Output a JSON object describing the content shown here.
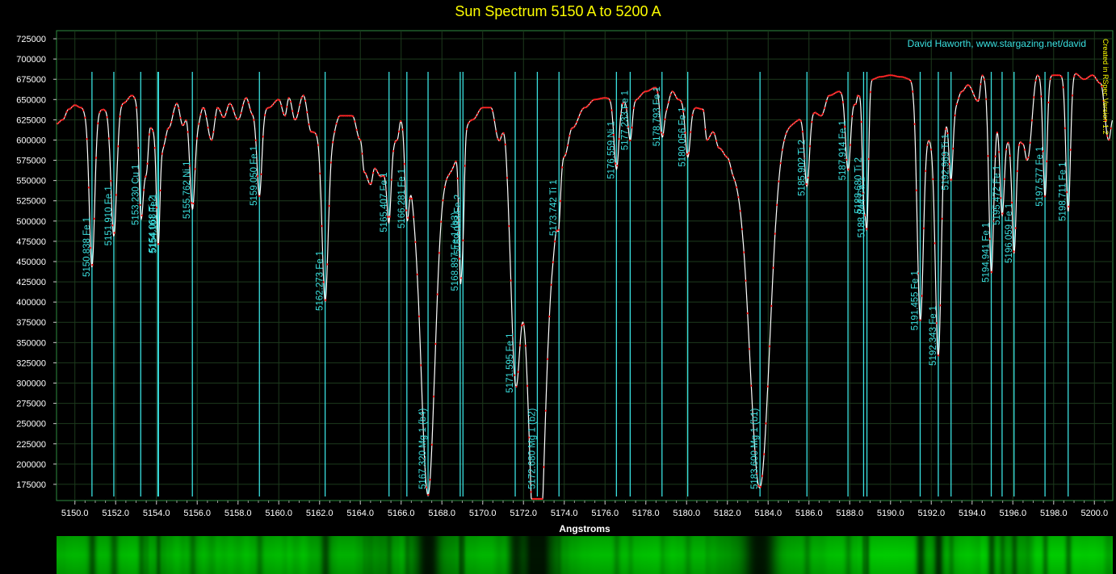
{
  "chart_data": {
    "type": "line",
    "title": "Sun Spectrum 5150 A to 5200 A",
    "xlabel": "Angstroms",
    "ylabel": "",
    "credit": "David Haworth, www.stargazing.net/david",
    "side_note": "Created in RSpec Version 1.2",
    "xlim": [
      5149.1,
      5200.9
    ],
    "ylim": [
      155000,
      735000
    ],
    "grid": true,
    "x_ticks": [
      5150,
      5152,
      5154,
      5156,
      5158,
      5160,
      5162,
      5164,
      5166,
      5168,
      5170,
      5172,
      5174,
      5176,
      5178,
      5180,
      5182,
      5184,
      5186,
      5188,
      5190,
      5192,
      5194,
      5196,
      5198,
      5200
    ],
    "x_tick_labels": [
      "5150.0",
      "5152.0",
      "5154.0",
      "5156.0",
      "5158.0",
      "5160.0",
      "5162.0",
      "5164.0",
      "5166.0",
      "5168.0",
      "5170.0",
      "5172.0",
      "5174.0",
      "5176.0",
      "5178.0",
      "5180.0",
      "5182.0",
      "5184.0",
      "5186.0",
      "5188.0",
      "5190.0",
      "5192.0",
      "5194.0",
      "5196.0",
      "5198.0",
      "5200.0"
    ],
    "y_ticks": [
      175000,
      200000,
      225000,
      250000,
      275000,
      300000,
      325000,
      350000,
      375000,
      400000,
      425000,
      450000,
      475000,
      500000,
      525000,
      550000,
      575000,
      600000,
      625000,
      650000,
      675000,
      700000,
      725000
    ],
    "y_tick_labels": [
      "175000",
      "200000",
      "225000",
      "250000",
      "275000",
      "300000",
      "325000",
      "350000",
      "375000",
      "400000",
      "425000",
      "450000",
      "475000",
      "500000",
      "525000",
      "550000",
      "575000",
      "600000",
      "625000",
      "650000",
      "675000",
      "700000",
      "725000"
    ],
    "continuum": [
      [
        5149.1,
        620000
      ],
      [
        5149.4,
        625000
      ],
      [
        5149.7,
        638000
      ],
      [
        5150.0,
        643000
      ],
      [
        5150.3,
        640000
      ],
      [
        5150.6,
        632000
      ],
      [
        5151.5,
        638000
      ],
      [
        5152.4,
        646000
      ],
      [
        5152.8,
        655000
      ],
      [
        5153.0,
        652000
      ],
      [
        5153.5,
        560000
      ],
      [
        5153.7,
        615000
      ],
      [
        5154.3,
        590000
      ],
      [
        5154.6,
        615000
      ],
      [
        5155.0,
        645000
      ],
      [
        5155.3,
        618000
      ],
      [
        5155.5,
        630000
      ],
      [
        5156.0,
        620000
      ],
      [
        5156.3,
        640000
      ],
      [
        5156.7,
        600000
      ],
      [
        5157.0,
        640000
      ],
      [
        5157.3,
        628000
      ],
      [
        5157.6,
        645000
      ],
      [
        5158.0,
        625000
      ],
      [
        5158.4,
        652000
      ],
      [
        5158.7,
        633000
      ],
      [
        5159.5,
        640000
      ],
      [
        5160.0,
        650000
      ],
      [
        5160.3,
        630000
      ],
      [
        5160.5,
        652000
      ],
      [
        5160.8,
        625000
      ],
      [
        5161.2,
        655000
      ],
      [
        5161.6,
        610000
      ],
      [
        5162.6,
        605000
      ],
      [
        5163.0,
        630000
      ],
      [
        5163.6,
        630000
      ],
      [
        5164.0,
        600000
      ],
      [
        5164.2,
        560000
      ],
      [
        5164.5,
        545000
      ],
      [
        5164.7,
        565000
      ],
      [
        5165.0,
        555000
      ],
      [
        5165.8,
        600000
      ],
      [
        5166.0,
        625000
      ],
      [
        5166.7,
        540000
      ],
      [
        5168.3,
        560000
      ],
      [
        5169.5,
        625000
      ],
      [
        5170.0,
        640000
      ],
      [
        5170.4,
        640000
      ],
      [
        5170.8,
        600000
      ],
      [
        5171.1,
        625000
      ],
      [
        5171.3,
        610000
      ],
      [
        5172.4,
        450000
      ],
      [
        5173.4,
        485000
      ],
      [
        5174.0,
        580000
      ],
      [
        5174.4,
        615000
      ],
      [
        5175.0,
        640000
      ],
      [
        5175.5,
        650000
      ],
      [
        5176.0,
        652000
      ],
      [
        5176.8,
        648000
      ],
      [
        5177.5,
        650000
      ],
      [
        5178.0,
        660000
      ],
      [
        5178.5,
        665000
      ],
      [
        5179.0,
        640000
      ],
      [
        5179.3,
        660000
      ],
      [
        5179.6,
        650000
      ],
      [
        5180.4,
        640000
      ],
      [
        5180.8,
        638000
      ],
      [
        5181.0,
        600000
      ],
      [
        5181.3,
        610000
      ],
      [
        5181.6,
        590000
      ],
      [
        5182.0,
        580000
      ],
      [
        5182.3,
        565000
      ],
      [
        5185.0,
        620000
      ],
      [
        5186.2,
        635000
      ],
      [
        5186.6,
        630000
      ],
      [
        5187.0,
        655000
      ],
      [
        5187.5,
        660000
      ],
      [
        5188.1,
        650000
      ],
      [
        5188.3,
        645000
      ],
      [
        5188.4,
        655000
      ],
      [
        5189.1,
        675000
      ],
      [
        5189.5,
        678000
      ],
      [
        5190.0,
        680000
      ],
      [
        5190.5,
        678000
      ],
      [
        5191.0,
        675000
      ],
      [
        5192.1,
        598000
      ],
      [
        5193.2,
        645000
      ],
      [
        5193.5,
        660000
      ],
      [
        5193.8,
        668000
      ],
      [
        5194.3,
        648000
      ],
      [
        5194.5,
        680000
      ],
      [
        5195.7,
        600000
      ],
      [
        5196.3,
        600000
      ],
      [
        5196.5,
        595000
      ],
      [
        5196.7,
        575000
      ],
      [
        5197.2,
        680000
      ],
      [
        5198.3,
        680000
      ],
      [
        5199.0,
        683000
      ],
      [
        5199.5,
        675000
      ],
      [
        5199.9,
        680000
      ],
      [
        5200.3,
        670000
      ],
      [
        5200.7,
        600000
      ],
      [
        5200.9,
        625000
      ]
    ],
    "absorption_lines": [
      {
        "wavelength": 5150.838,
        "label": "5150.838 Fe 1",
        "depth": 190000,
        "width": 0.13
      },
      {
        "wavelength": 5151.91,
        "label": "5151.910 Fe 1",
        "depth": 160000,
        "width": 0.14
      },
      {
        "wavelength": 5153.23,
        "label": "5153.230 Cu 1",
        "depth": 105000,
        "width": 0.1
      },
      {
        "wavelength": 5154.068,
        "label": "5154.068 Ti 2",
        "depth": 70000,
        "width": 0.08
      },
      {
        "wavelength": 5154.101,
        "label": "5154.101 Fe 1",
        "depth": 60000,
        "width": 0.08
      },
      {
        "wavelength": 5155.762,
        "label": "5155.762 Ni 1",
        "depth": 110000,
        "width": 0.12
      },
      {
        "wavelength": 5159.05,
        "label": "5159.050 Fe 1",
        "depth": 105000,
        "width": 0.12
      },
      {
        "wavelength": 5162.273,
        "label": "5162.273 Fe 1",
        "depth": 205000,
        "width": 0.15
      },
      {
        "wavelength": 5165.407,
        "label": "5165.407 Fe 1",
        "depth": 80000,
        "width": 0.1
      },
      {
        "wavelength": 5166.281,
        "label": "5166.281 Fe 1",
        "depth": 90000,
        "width": 0.1
      },
      {
        "wavelength": 5167.32,
        "label": "5167.320 Mg 1 (b4)",
        "depth": 385000,
        "width": 0.33
      },
      {
        "wavelength": 5168.897,
        "label": "5168.897 Fe 1 (b3)",
        "depth": 150000,
        "width": 0.07
      },
      {
        "wavelength": 5169.033,
        "label": "5169.033 Fe 2",
        "depth": 110000,
        "width": 0.07
      },
      {
        "wavelength": 5171.595,
        "label": "5171.595 Fe 1",
        "depth": 280000,
        "width": 0.23
      },
      {
        "wavelength": 5172.68,
        "label": "5172.680 Mg 1 (b2)",
        "depth": 420000,
        "width": 0.35
      },
      {
        "wavelength": 5173.742,
        "label": "5173.742 Ti 1",
        "depth": 45000,
        "width": 0.08
      },
      {
        "wavelength": 5176.559,
        "label": "5176.559 Ni 1",
        "depth": 85000,
        "width": 0.12
      },
      {
        "wavelength": 5177.233,
        "label": "5177.233 Fe 1",
        "depth": 50000,
        "width": 0.1
      },
      {
        "wavelength": 5178.793,
        "label": "5178.793 Fe 1",
        "depth": 45000,
        "width": 0.1
      },
      {
        "wavelength": 5180.056,
        "label": "5180.056 Fe 1",
        "depth": 65000,
        "width": 0.12
      },
      {
        "wavelength": 5183.6,
        "label": "5183.600 Mg 1 (b1)",
        "depth": 420000,
        "width": 0.48
      },
      {
        "wavelength": 5185.902,
        "label": "5185.902 Ti 2",
        "depth": 90000,
        "width": 0.12
      },
      {
        "wavelength": 5187.914,
        "label": "5187.914 Fe 1",
        "depth": 90000,
        "width": 0.12
      },
      {
        "wavelength": 5188.68,
        "label": "5188.680 Ti 2",
        "depth": 120000,
        "width": 0.07
      },
      {
        "wavelength": 5188.844,
        "label": "5188.844 Ca 1",
        "depth": 170000,
        "width": 0.08
      },
      {
        "wavelength": 5191.455,
        "label": "5191.455 Fe 1",
        "depth": 270000,
        "width": 0.15
      },
      {
        "wavelength": 5192.343,
        "label": "5192.343 Fe 1",
        "depth": 270000,
        "width": 0.14
      },
      {
        "wavelength": 5192.969,
        "label": "5192.969 Ti 1",
        "depth": 90000,
        "width": 0.1
      },
      {
        "wavelength": 5194.941,
        "label": "5194.941 Fe 1",
        "depth": 220000,
        "width": 0.12
      },
      {
        "wavelength": 5195.472,
        "label": "5195.472 Fe 1",
        "depth": 100000,
        "width": 0.1
      },
      {
        "wavelength": 5196.059,
        "label": "5196.059 Fe 1",
        "depth": 140000,
        "width": 0.1
      },
      {
        "wavelength": 5197.577,
        "label": "5197.577 Fe 1",
        "depth": 150000,
        "width": 0.1
      },
      {
        "wavelength": 5198.711,
        "label": "5198.711 Fe 1",
        "depth": 170000,
        "width": 0.11
      }
    ]
  },
  "colors": {
    "background": "#000000",
    "plot_background": "#000000",
    "plot_border": "#2e8b3f",
    "grid": "#1d3a1d",
    "line": "#ffffff",
    "markers": "#ff1a1a",
    "element_lines": "#3ae0e0",
    "title": "#ffff00",
    "credit": "#3ae0e0",
    "tick_text": "#ffffff",
    "side_note": "#ffff00",
    "strip_dark": "#000000",
    "strip_bright": "#10c010"
  }
}
